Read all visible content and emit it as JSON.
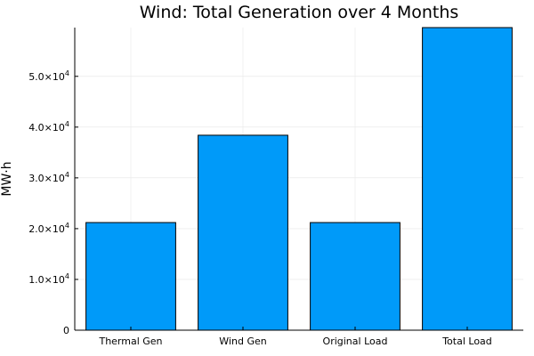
{
  "chart_data": {
    "type": "bar",
    "title": "Wind: Total Generation over 4 Months",
    "xlabel": "",
    "ylabel": "MW·h",
    "categories": [
      "Thermal Gen",
      "Wind Gen",
      "Original Load",
      "Total Load"
    ],
    "values": [
      21200,
      38400,
      21200,
      59600
    ],
    "ylim": [
      0,
      59600
    ],
    "yticks": [
      0,
      10000,
      20000,
      30000,
      40000,
      50000
    ],
    "ytick_labels": [
      {
        "mantissa": "0",
        "exp": ""
      },
      {
        "mantissa": "1.0×10",
        "exp": "4"
      },
      {
        "mantissa": "2.0×10",
        "exp": "4"
      },
      {
        "mantissa": "3.0×10",
        "exp": "4"
      },
      {
        "mantissa": "4.0×10",
        "exp": "4"
      },
      {
        "mantissa": "5.0×10",
        "exp": "4"
      }
    ],
    "grid": true,
    "legend": "none",
    "bar_color": "#009af9",
    "bar_edge_color": "#000000"
  }
}
